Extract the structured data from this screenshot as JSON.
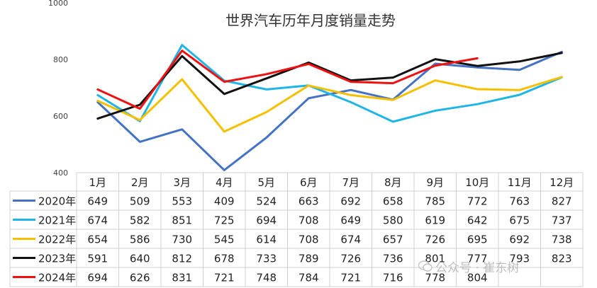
{
  "chart_data": {
    "type": "line",
    "title": "世界汽车历年月度销量走势",
    "categories": [
      "1月",
      "2月",
      "3月",
      "4月",
      "5月",
      "6月",
      "7月",
      "8月",
      "9月",
      "10月",
      "11月",
      "12月"
    ],
    "ylim": [
      400,
      1000
    ],
    "yticks": [
      400,
      600,
      800,
      1000
    ],
    "grid": false,
    "legend_position": "left-of-table",
    "series": [
      {
        "name": "2020年",
        "color": "#4472C4",
        "values": [
          649,
          509,
          553,
          409,
          524,
          663,
          692,
          658,
          785,
          772,
          763,
          827
        ]
      },
      {
        "name": "2021年",
        "color": "#1FB5E6",
        "values": [
          674,
          582,
          851,
          725,
          694,
          708,
          649,
          580,
          619,
          642,
          675,
          737
        ]
      },
      {
        "name": "2022年",
        "color": "#F5C000",
        "values": [
          654,
          586,
          730,
          545,
          614,
          708,
          674,
          657,
          726,
          695,
          692,
          738
        ]
      },
      {
        "name": "2023年",
        "color": "#111111",
        "values": [
          591,
          640,
          812,
          678,
          733,
          789,
          726,
          736,
          801,
          777,
          793,
          823
        ]
      },
      {
        "name": "2024年",
        "color": "#EE1111",
        "values": [
          694,
          626,
          831,
          721,
          748,
          784,
          721,
          716,
          778,
          804,
          null,
          null
        ]
      }
    ]
  },
  "watermark": {
    "text": "公众号 · 崔东树",
    "icon": "wechat-icon"
  }
}
